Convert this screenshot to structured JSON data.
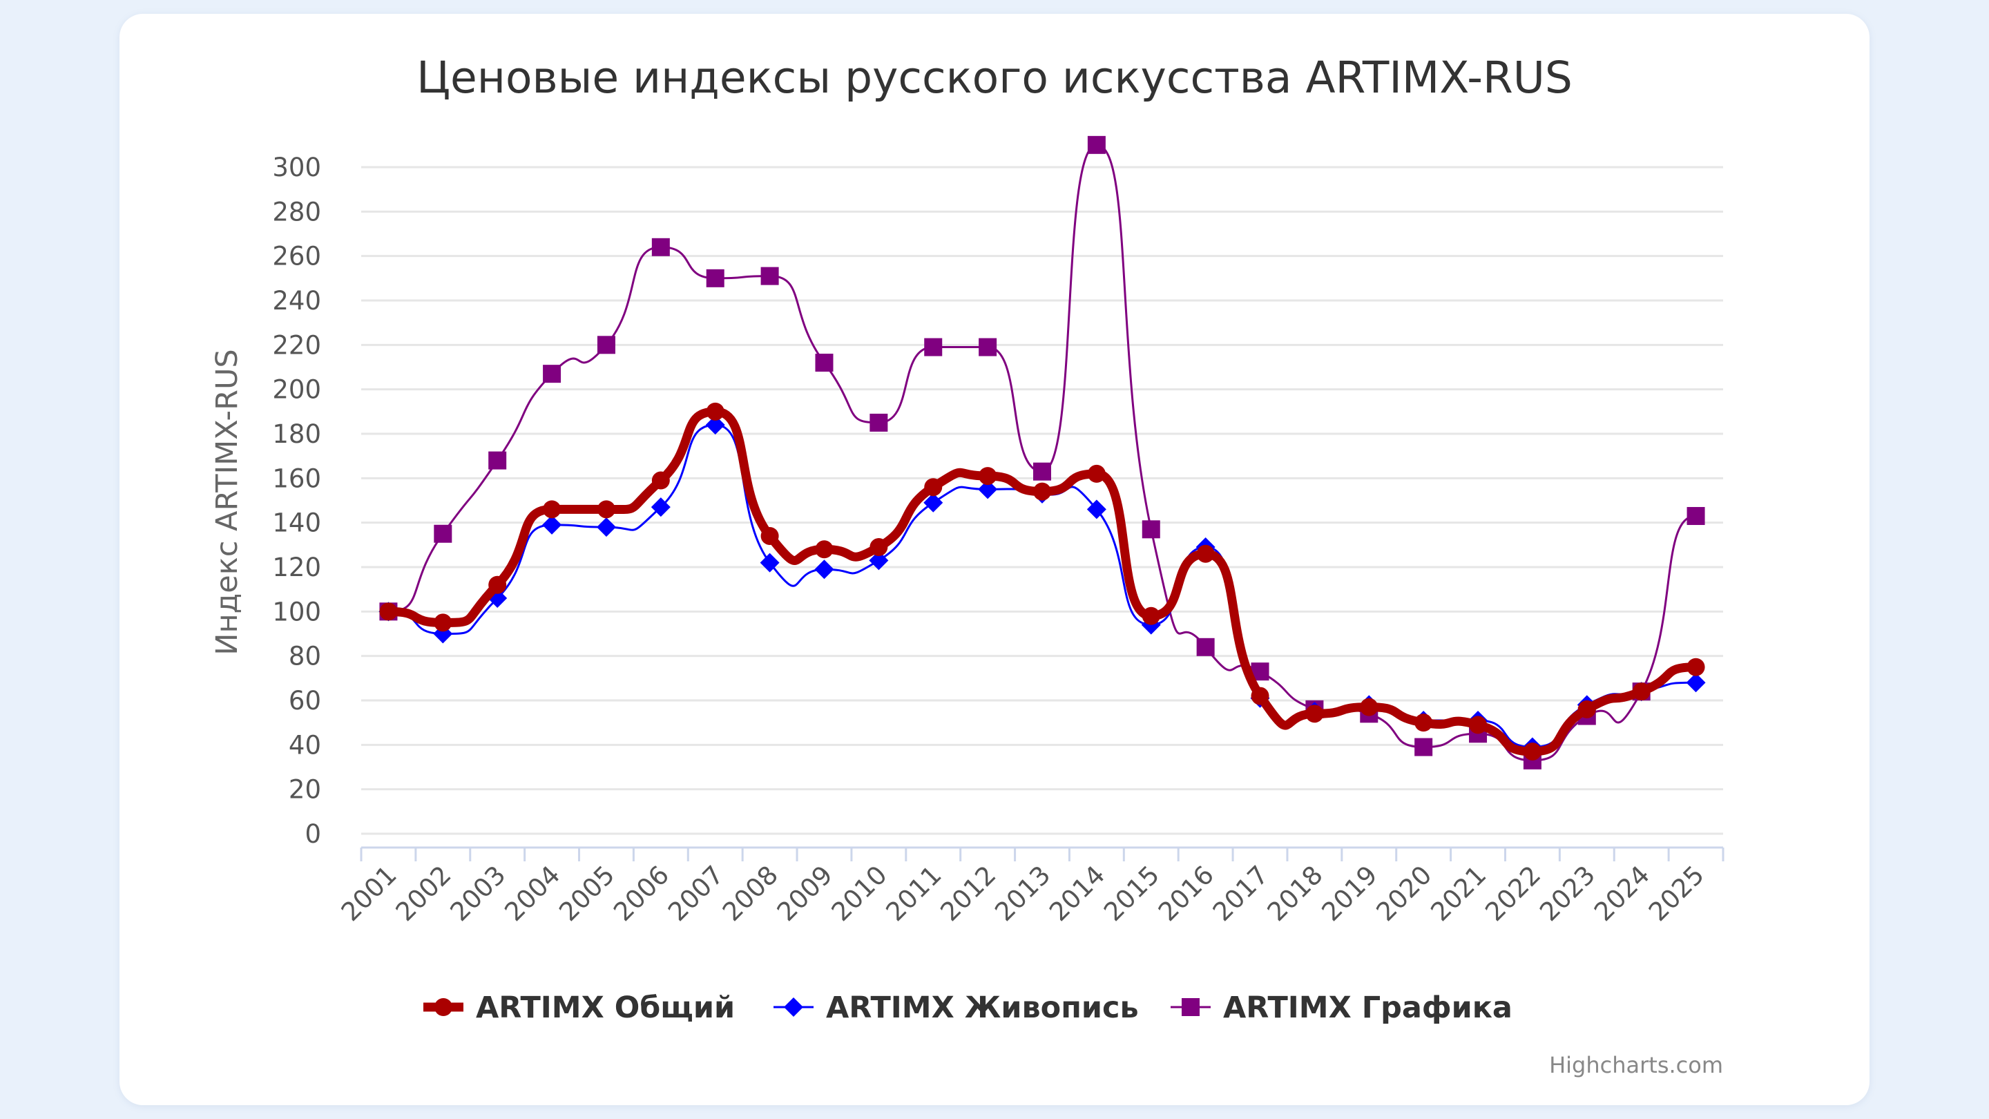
{
  "chart_data": {
    "type": "line",
    "title": "Ценовые индексы русского искусства ARTIMX-RUS",
    "ylabel": "Индекс ARTIMX-RUS",
    "xlabel": "",
    "ylim": [
      0,
      300
    ],
    "yticks": [
      0,
      20,
      40,
      60,
      80,
      100,
      120,
      140,
      160,
      180,
      200,
      220,
      240,
      260,
      280,
      300
    ],
    "grid": true,
    "legend_position": "bottom",
    "categories": [
      "2001",
      "2002",
      "2003",
      "2004",
      "2005",
      "2006",
      "2007",
      "2008",
      "2009",
      "2010",
      "2011",
      "2012",
      "2013",
      "2014",
      "2015",
      "2016",
      "2017",
      "2018",
      "2019",
      "2020",
      "2021",
      "2022",
      "2023",
      "2024",
      "2025"
    ],
    "series": [
      {
        "name": "ARTIMX Графика",
        "color": "#800080",
        "marker": "square",
        "values": [
          100,
          135,
          168,
          207,
          220,
          264,
          250,
          251,
          212,
          185,
          219,
          219,
          163,
          310,
          137,
          84,
          73,
          56,
          54,
          39,
          45,
          33,
          53,
          64,
          143
        ]
      },
      {
        "name": "ARTIMX Живопись",
        "color": "#0000ff",
        "marker": "diamond",
        "values": [
          100,
          90,
          106,
          139,
          138,
          147,
          184,
          122,
          119,
          123,
          149,
          155,
          153,
          146,
          94,
          129,
          61,
          55,
          58,
          51,
          51,
          39,
          58,
          64,
          68
        ]
      },
      {
        "name": "ARTIMX Общий",
        "color": "#aa0000",
        "marker": "circle",
        "values": [
          100,
          95,
          112,
          146,
          146,
          159,
          190,
          134,
          128,
          129,
          156,
          161,
          154,
          162,
          98,
          126,
          62,
          54,
          57,
          50,
          49,
          37,
          56,
          64,
          75
        ]
      }
    ],
    "legend_order": [
      "ARTIMX Общий",
      "ARTIMX Живопись",
      "ARTIMX Графика"
    ],
    "credits": "Highcharts.com"
  }
}
